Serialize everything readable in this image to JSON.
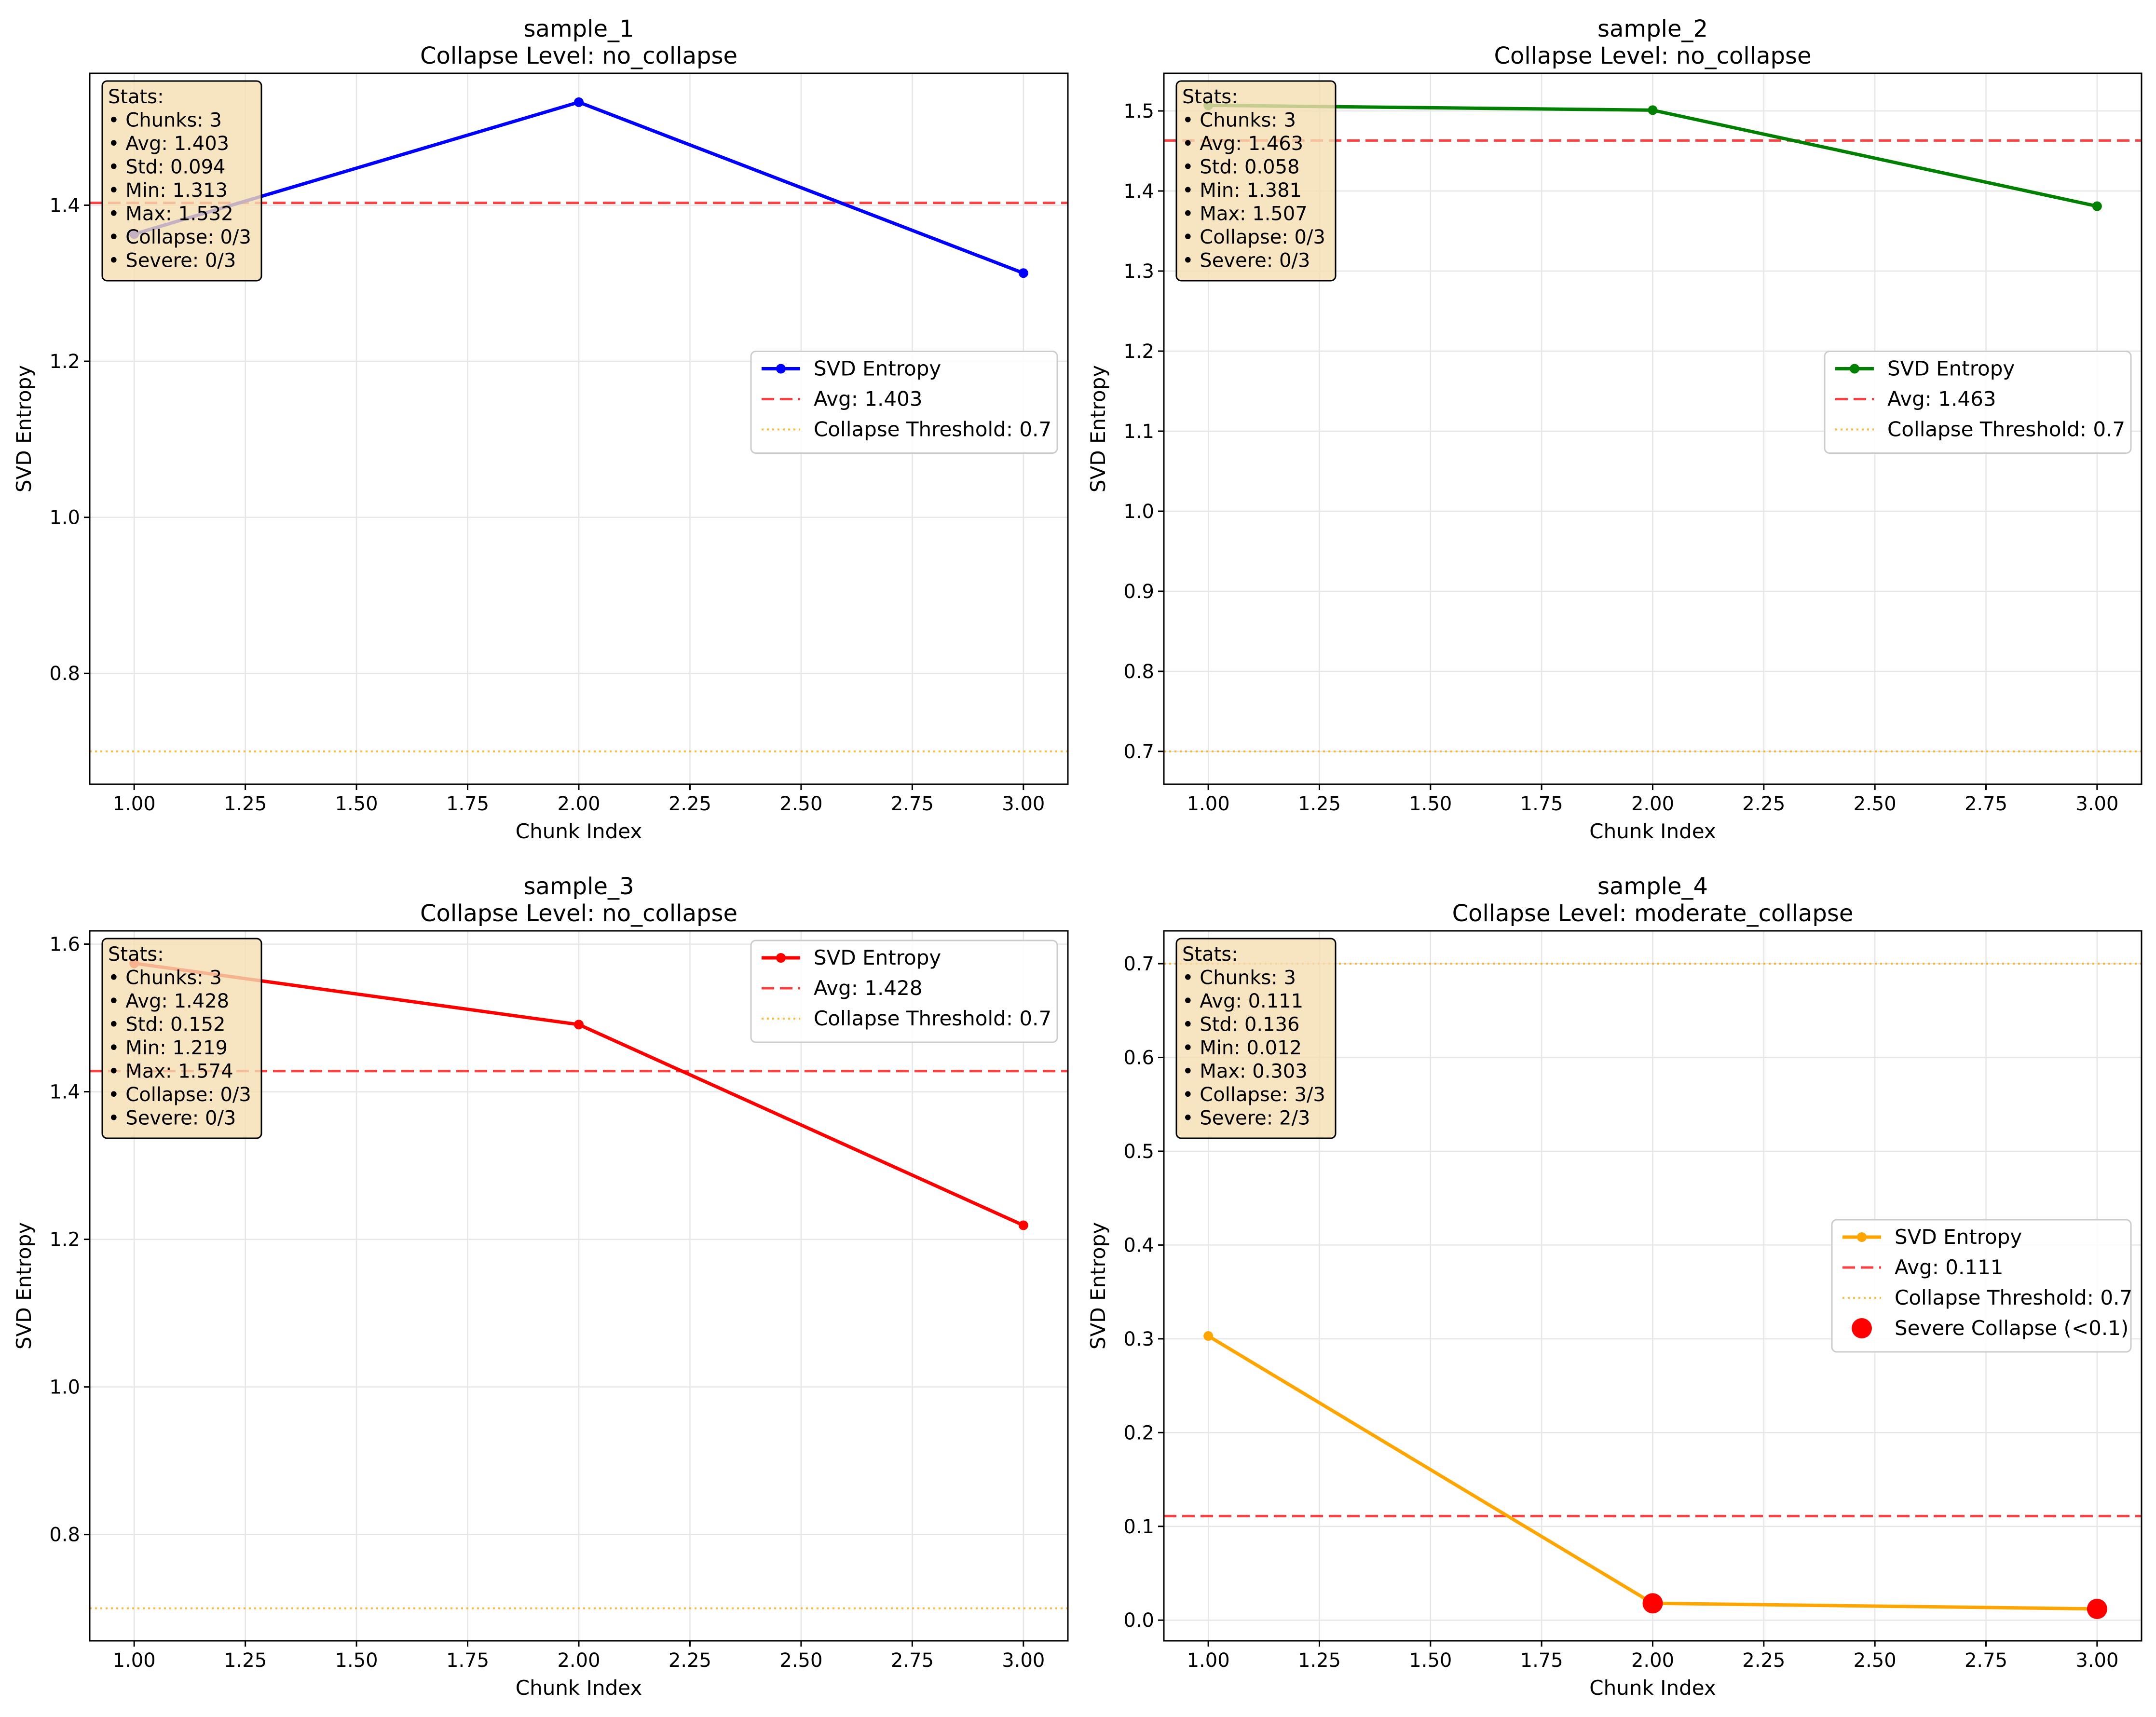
{
  "figure": {
    "subplots": [
      "sample_1",
      "sample_2",
      "sample_3",
      "sample_4"
    ]
  },
  "colors": {
    "blue": "#0000ff",
    "green": "#008000",
    "red": "#ff0000",
    "orange": "#ffa500",
    "avg_line": "#ff0000",
    "threshold_line": "#ffa500",
    "severe_marker": "#ff0000",
    "stats_box_fill": "#f5deb3",
    "grid": "#e6e6e6"
  },
  "chart_data": [
    {
      "type": "line",
      "title": "sample_1",
      "subtitle": "Collapse Level: no_collapse",
      "xlabel": "Chunk Index",
      "ylabel": "SVD Entropy",
      "x": [
        1,
        2,
        3
      ],
      "series": [
        {
          "name": "SVD Entropy",
          "values": [
            1.363,
            1.532,
            1.313
          ],
          "color": "#0000ff"
        }
      ],
      "avg": 1.403,
      "threshold": 0.7,
      "xlim": [
        0.9,
        3.1
      ],
      "ylim": [
        0.658,
        1.569
      ],
      "xticks": [
        "1.00",
        "1.25",
        "1.50",
        "1.75",
        "2.00",
        "2.25",
        "2.50",
        "2.75",
        "3.00"
      ],
      "xtick_values": [
        1.0,
        1.25,
        1.5,
        1.75,
        2.0,
        2.25,
        2.5,
        2.75,
        3.0
      ],
      "yticks": [
        "0.8",
        "1.0",
        "1.2",
        "1.4"
      ],
      "ytick_values": [
        0.8,
        1.0,
        1.2,
        1.4
      ],
      "grid": true,
      "legend": {
        "placement": "center-right",
        "entries": [
          "SVD Entropy",
          "Avg: 1.403",
          "Collapse Threshold: 0.7"
        ]
      },
      "stats": [
        "Stats:",
        "• Chunks: 3",
        "• Avg: 1.403",
        "• Std: 0.094",
        "• Min: 1.313",
        "• Max: 1.532",
        "• Collapse: 0/3",
        "• Severe: 0/3"
      ],
      "severe_points": []
    },
    {
      "type": "line",
      "title": "sample_2",
      "subtitle": "Collapse Level: no_collapse",
      "xlabel": "Chunk Index",
      "ylabel": "SVD Entropy",
      "x": [
        1,
        2,
        3
      ],
      "series": [
        {
          "name": "SVD Entropy",
          "values": [
            1.507,
            1.501,
            1.381
          ],
          "color": "#008000"
        }
      ],
      "avg": 1.463,
      "threshold": 0.7,
      "xlim": [
        0.9,
        3.1
      ],
      "ylim": [
        0.659,
        1.547
      ],
      "xticks": [
        "1.00",
        "1.25",
        "1.50",
        "1.75",
        "2.00",
        "2.25",
        "2.50",
        "2.75",
        "3.00"
      ],
      "xtick_values": [
        1.0,
        1.25,
        1.5,
        1.75,
        2.0,
        2.25,
        2.5,
        2.75,
        3.0
      ],
      "yticks": [
        "0.7",
        "0.8",
        "0.9",
        "1.0",
        "1.1",
        "1.2",
        "1.3",
        "1.4",
        "1.5"
      ],
      "ytick_values": [
        0.7,
        0.8,
        0.9,
        1.0,
        1.1,
        1.2,
        1.3,
        1.4,
        1.5
      ],
      "grid": true,
      "legend": {
        "placement": "center-right",
        "entries": [
          "SVD Entropy",
          "Avg: 1.463",
          "Collapse Threshold: 0.7"
        ]
      },
      "stats": [
        "Stats:",
        "• Chunks: 3",
        "• Avg: 1.463",
        "• Std: 0.058",
        "• Min: 1.381",
        "• Max: 1.507",
        "• Collapse: 0/3",
        "• Severe: 0/3"
      ],
      "severe_points": []
    },
    {
      "type": "line",
      "title": "sample_3",
      "subtitle": "Collapse Level: no_collapse",
      "xlabel": "Chunk Index",
      "ylabel": "SVD Entropy",
      "x": [
        1,
        2,
        3
      ],
      "series": [
        {
          "name": "SVD Entropy",
          "values": [
            1.574,
            1.491,
            1.219
          ],
          "color": "#ff0000"
        }
      ],
      "avg": 1.428,
      "threshold": 0.7,
      "xlim": [
        0.9,
        3.1
      ],
      "ylim": [
        0.656,
        1.618
      ],
      "xticks": [
        "1.00",
        "1.25",
        "1.50",
        "1.75",
        "2.00",
        "2.25",
        "2.50",
        "2.75",
        "3.00"
      ],
      "xtick_values": [
        1.0,
        1.25,
        1.5,
        1.75,
        2.0,
        2.25,
        2.5,
        2.75,
        3.0
      ],
      "yticks": [
        "0.8",
        "1.0",
        "1.2",
        "1.4",
        "1.6"
      ],
      "ytick_values": [
        0.8,
        1.0,
        1.2,
        1.4,
        1.6
      ],
      "grid": true,
      "legend": {
        "placement": "top-right",
        "entries": [
          "SVD Entropy",
          "Avg: 1.428",
          "Collapse Threshold: 0.7"
        ]
      },
      "stats": [
        "Stats:",
        "• Chunks: 3",
        "• Avg: 1.428",
        "• Std: 0.152",
        "• Min: 1.219",
        "• Max: 1.574",
        "• Collapse: 0/3",
        "• Severe: 0/3"
      ],
      "severe_points": []
    },
    {
      "type": "line",
      "title": "sample_4",
      "subtitle": "Collapse Level: moderate_collapse",
      "xlabel": "Chunk Index",
      "ylabel": "SVD Entropy",
      "x": [
        1,
        2,
        3
      ],
      "series": [
        {
          "name": "SVD Entropy",
          "values": [
            0.303,
            0.018,
            0.012
          ],
          "color": "#ffa500"
        }
      ],
      "avg": 0.111,
      "threshold": 0.7,
      "xlim": [
        0.9,
        3.1
      ],
      "ylim": [
        -0.022,
        0.735
      ],
      "xticks": [
        "1.00",
        "1.25",
        "1.50",
        "1.75",
        "2.00",
        "2.25",
        "2.50",
        "2.75",
        "3.00"
      ],
      "xtick_values": [
        1.0,
        1.25,
        1.5,
        1.75,
        2.0,
        2.25,
        2.5,
        2.75,
        3.0
      ],
      "yticks": [
        "0.0",
        "0.1",
        "0.2",
        "0.3",
        "0.4",
        "0.5",
        "0.6",
        "0.7"
      ],
      "ytick_values": [
        0.0,
        0.1,
        0.2,
        0.3,
        0.4,
        0.5,
        0.6,
        0.7
      ],
      "grid": true,
      "legend": {
        "placement": "center-right",
        "entries": [
          "SVD Entropy",
          "Avg: 0.111",
          "Collapse Threshold: 0.7",
          "Severe Collapse (<0.1)"
        ]
      },
      "stats": [
        "Stats:",
        "• Chunks: 3",
        "• Avg: 0.111",
        "• Std: 0.136",
        "• Min: 0.012",
        "• Max: 0.303",
        "• Collapse: 3/3",
        "• Severe: 2/3"
      ],
      "severe_points": [
        {
          "x": 2,
          "y": 0.018
        },
        {
          "x": 3,
          "y": 0.012
        }
      ]
    }
  ]
}
